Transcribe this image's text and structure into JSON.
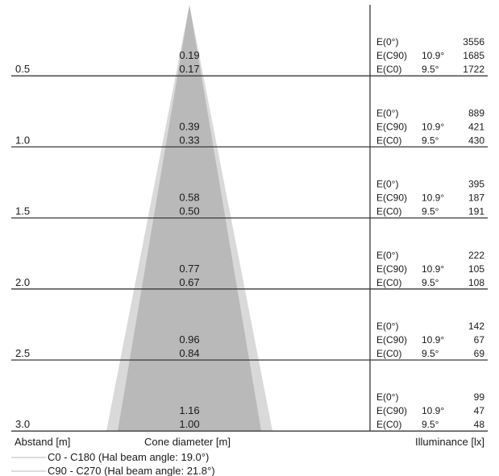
{
  "footer": {
    "distance_label": "Abstand [m]",
    "cone_label": "Cone diameter [m]",
    "illuminance_label": "Illuminance [lx]"
  },
  "legend": [
    "C0 - C180 (Hal beam angle: 19.0°)",
    "C90 - C270 (Hal beam angle: 21.8°)"
  ],
  "rows": [
    {
      "distance": "0.5",
      "cone_c90": "0.19",
      "cone_c0": "0.17",
      "illuminance": [
        {
          "label": "E(0°)",
          "angle": "",
          "value": "3556"
        },
        {
          "label": "E(C90)",
          "angle": "10.9°",
          "value": "1685"
        },
        {
          "label": "E(C0)",
          "angle": "9.5°",
          "value": "1722"
        }
      ]
    },
    {
      "distance": "1.0",
      "cone_c90": "0.39",
      "cone_c0": "0.33",
      "illuminance": [
        {
          "label": "E(0°)",
          "angle": "",
          "value": "889"
        },
        {
          "label": "E(C90)",
          "angle": "10.9°",
          "value": "421"
        },
        {
          "label": "E(C0)",
          "angle": "9.5°",
          "value": "430"
        }
      ]
    },
    {
      "distance": "1.5",
      "cone_c90": "0.58",
      "cone_c0": "0.50",
      "illuminance": [
        {
          "label": "E(0°)",
          "angle": "",
          "value": "395"
        },
        {
          "label": "E(C90)",
          "angle": "10.9°",
          "value": "187"
        },
        {
          "label": "E(C0)",
          "angle": "9.5°",
          "value": "191"
        }
      ]
    },
    {
      "distance": "2.0",
      "cone_c90": "0.77",
      "cone_c0": "0.67",
      "illuminance": [
        {
          "label": "E(0°)",
          "angle": "",
          "value": "222"
        },
        {
          "label": "E(C90)",
          "angle": "10.9°",
          "value": "105"
        },
        {
          "label": "E(C0)",
          "angle": "9.5°",
          "value": "108"
        }
      ]
    },
    {
      "distance": "2.5",
      "cone_c90": "0.96",
      "cone_c0": "0.84",
      "illuminance": [
        {
          "label": "E(0°)",
          "angle": "",
          "value": "142"
        },
        {
          "label": "E(C90)",
          "angle": "10.9°",
          "value": "67"
        },
        {
          "label": "E(C0)",
          "angle": "9.5°",
          "value": "69"
        }
      ]
    },
    {
      "distance": "3.0",
      "cone_c90": "1.16",
      "cone_c0": "1.00",
      "illuminance": [
        {
          "label": "E(0°)",
          "angle": "",
          "value": "99"
        },
        {
          "label": "E(C90)",
          "angle": "10.9°",
          "value": "47"
        },
        {
          "label": "E(C0)",
          "angle": "9.5°",
          "value": "48"
        }
      ]
    }
  ],
  "colors": {
    "cone_outer": "#d9d9d9",
    "cone_inner": "#b9b9b9",
    "rule": "#3a3a3a",
    "legend_line": "#bbbbbb"
  }
}
